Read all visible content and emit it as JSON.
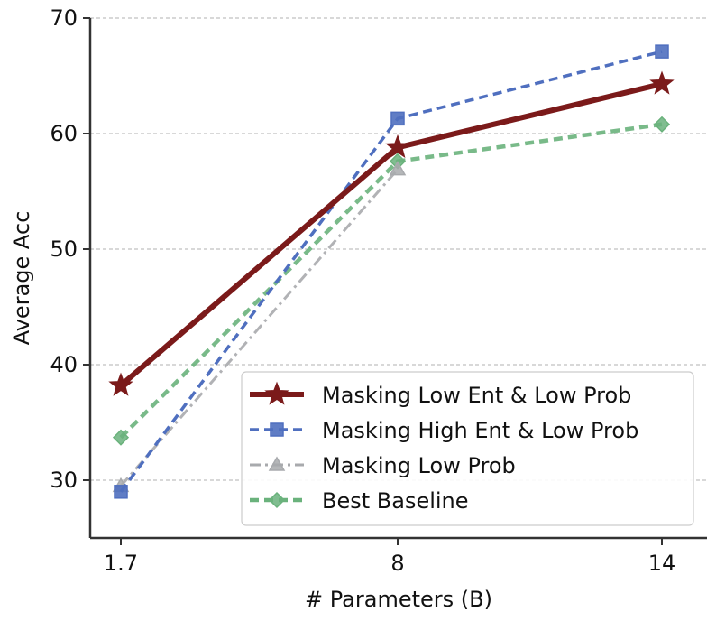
{
  "chart_data": {
    "type": "line",
    "title": "",
    "xlabel": "# Parameters (B)",
    "ylabel": "Average Acc",
    "categories": [
      "1.7",
      "8",
      "14"
    ],
    "ylim": [
      25,
      70
    ],
    "yticks": [
      30,
      40,
      50,
      60,
      70
    ],
    "grid": "horizontal-dashed",
    "legend_position": "bottom-right",
    "series": [
      {
        "name": "Masking Low Ent & Low Prob",
        "values": [
          38.2,
          58.8,
          64.3
        ],
        "color": "#7b1a1a",
        "marker": "star",
        "linestyle": "solid"
      },
      {
        "name": "Masking High Ent & Low Prob",
        "values": [
          29.0,
          61.3,
          67.1
        ],
        "color": "#4f6fbf",
        "marker": "square",
        "linestyle": "dashed"
      },
      {
        "name": "Masking Low Prob",
        "values": [
          29.5,
          56.9,
          null
        ],
        "color": "#a8aaad",
        "marker": "triangle",
        "linestyle": "dashdot"
      },
      {
        "name": "Best Baseline",
        "values": [
          33.7,
          57.6,
          60.8
        ],
        "color": "#6ab27c",
        "marker": "diamond",
        "linestyle": "dashed"
      }
    ]
  }
}
